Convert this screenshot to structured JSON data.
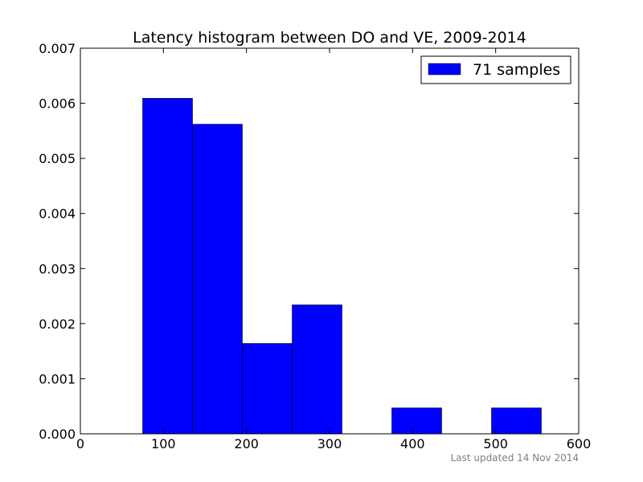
{
  "chart_data": {
    "type": "bar",
    "title": "Latency histogram between DO and VE, 2009-2014",
    "xlabel": "",
    "ylabel": "",
    "xlim": [
      0,
      600
    ],
    "ylim": [
      0,
      0.007
    ],
    "xticks": [
      0,
      100,
      200,
      300,
      400,
      500,
      600
    ],
    "xtick_labels": [
      "0",
      "100",
      "200",
      "300",
      "400",
      "500",
      "600"
    ],
    "yticks": [
      0,
      0.001,
      0.002,
      0.003,
      0.004,
      0.005,
      0.006,
      0.007
    ],
    "ytick_labels": [
      "0.000",
      "0.001",
      "0.002",
      "0.003",
      "0.004",
      "0.005",
      "0.006",
      "0.007"
    ],
    "grid": false,
    "legend_position": "top-right",
    "series": [
      {
        "name": "71 samples",
        "color": "#0000ff",
        "bins": [
          {
            "x0": 75,
            "x1": 135,
            "value": 0.00609
          },
          {
            "x0": 135,
            "x1": 195,
            "value": 0.00562
          },
          {
            "x0": 195,
            "x1": 255,
            "value": 0.00164
          },
          {
            "x0": 255,
            "x1": 315,
            "value": 0.00234
          },
          {
            "x0": 375,
            "x1": 435,
            "value": 0.00047
          },
          {
            "x0": 495,
            "x1": 555,
            "value": 0.00047
          }
        ]
      }
    ]
  },
  "footer": {
    "text": "Last updated 14 Nov 2014"
  }
}
